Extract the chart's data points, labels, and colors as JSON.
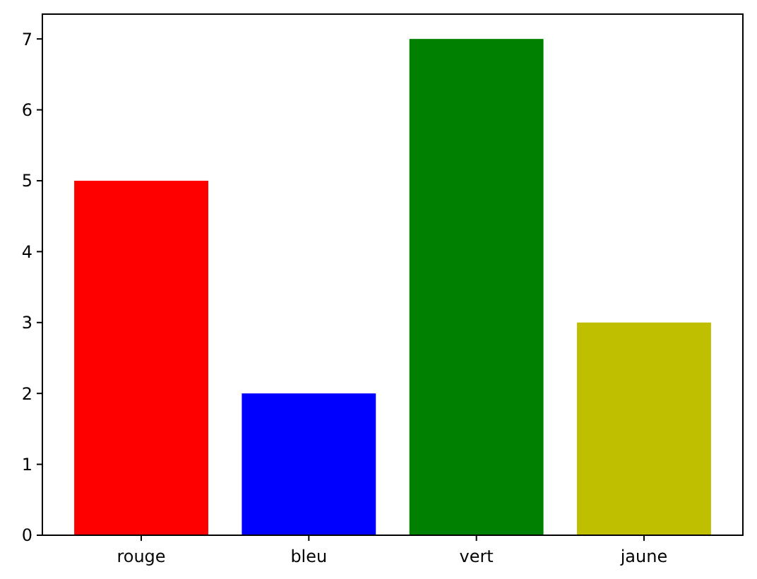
{
  "chart_data": {
    "type": "bar",
    "categories": [
      "rouge",
      "bleu",
      "vert",
      "jaune"
    ],
    "values": [
      5,
      2,
      7,
      3
    ],
    "colors": [
      "#ff0000",
      "#0000ff",
      "#008000",
      "#bfbf00"
    ],
    "ylim": [
      0,
      7.35
    ],
    "yticks": [
      0,
      1,
      2,
      3,
      4,
      5,
      6,
      7
    ]
  }
}
